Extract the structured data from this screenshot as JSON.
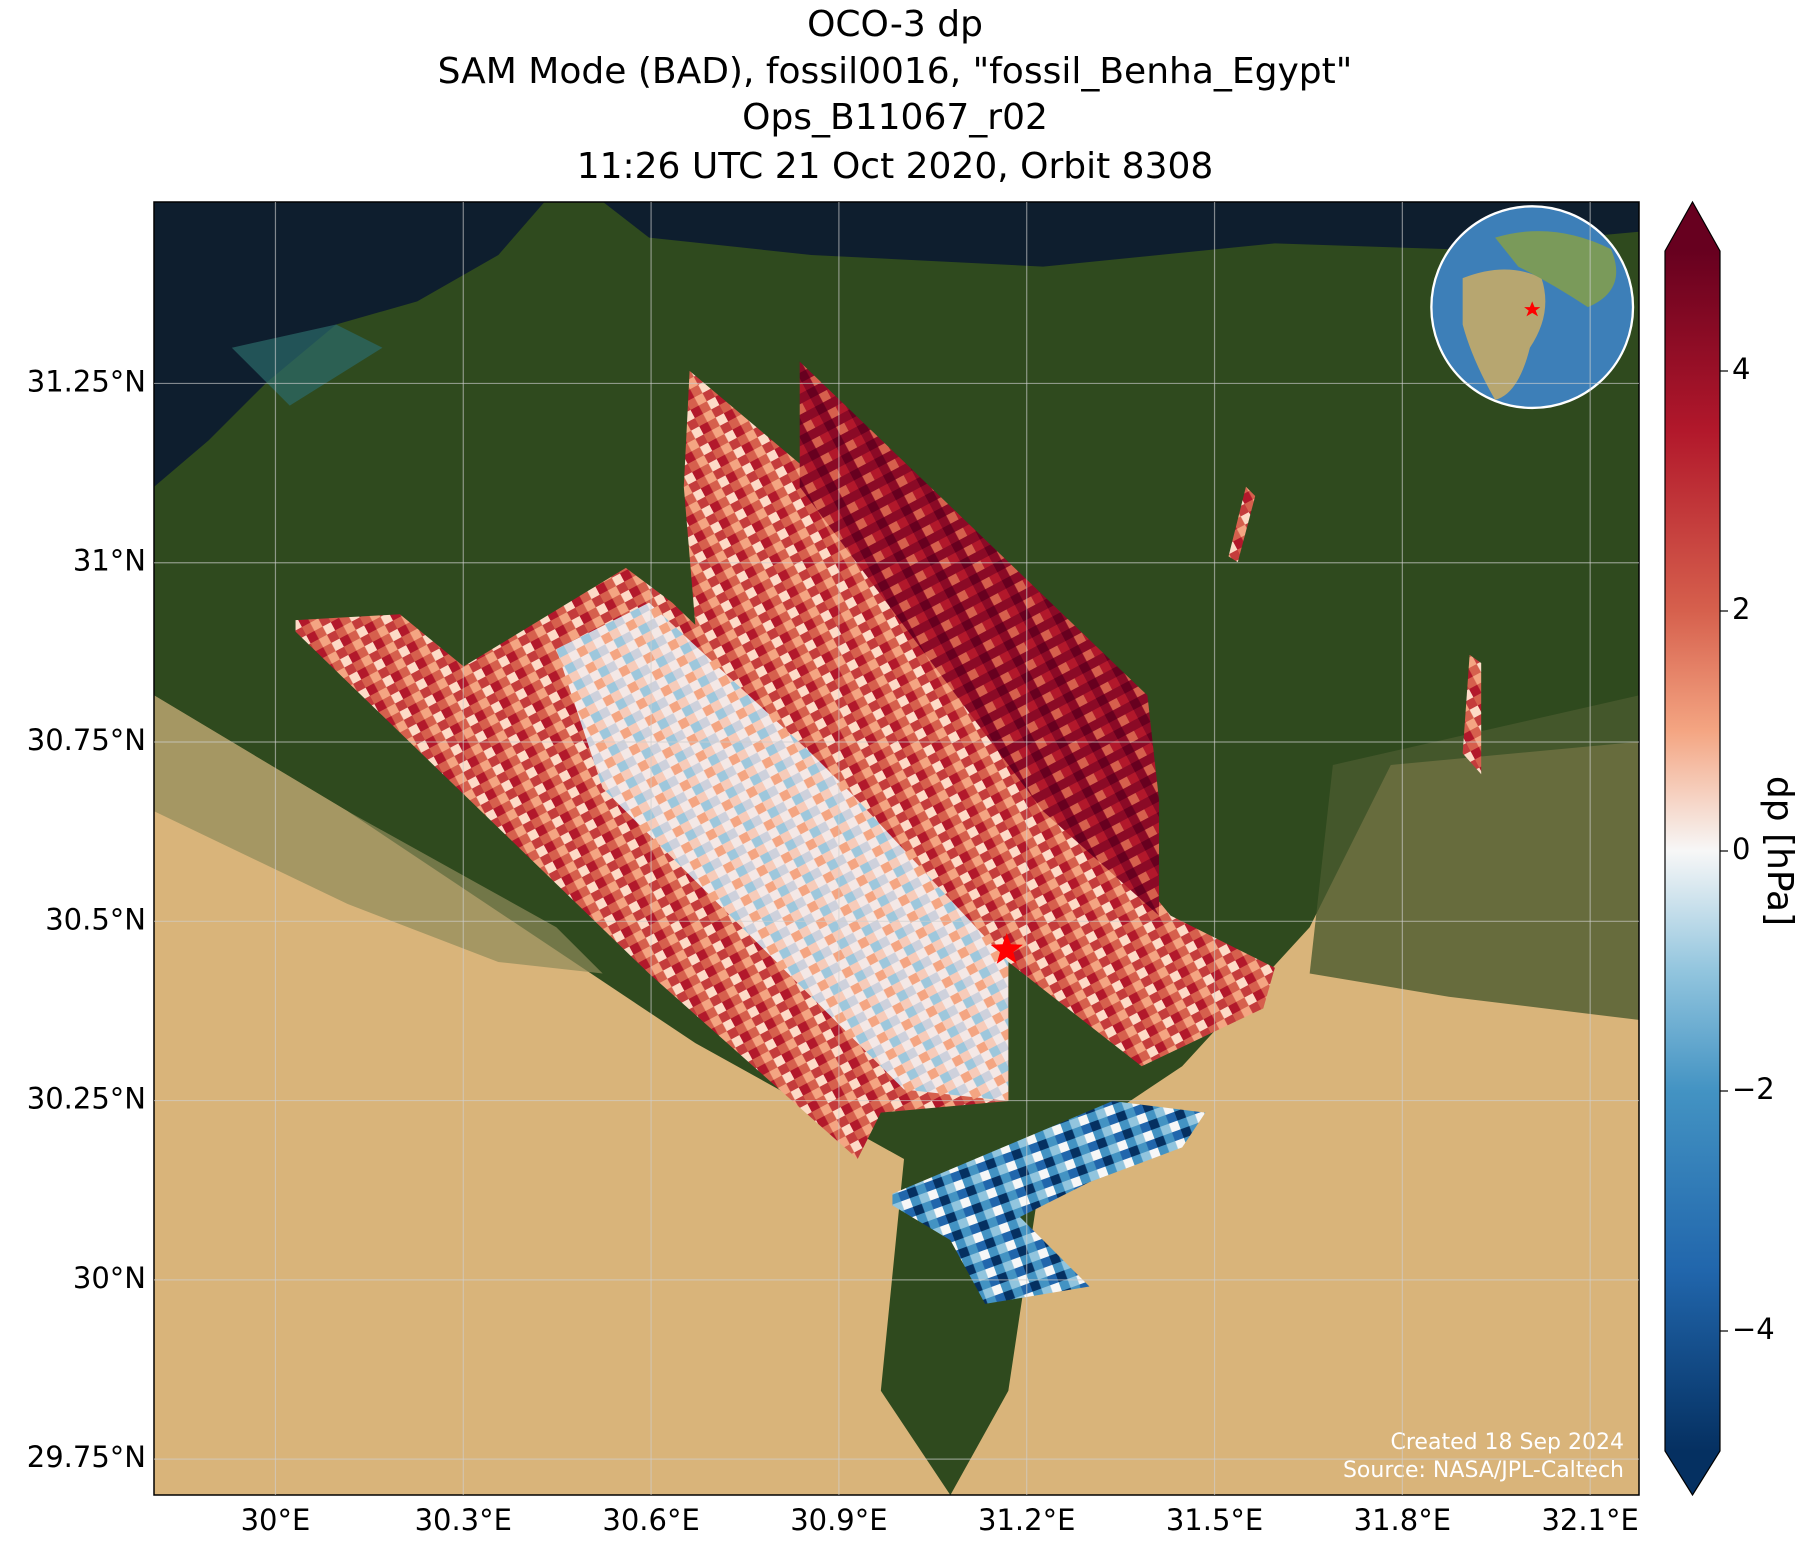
{
  "chart_data": {
    "type": "map",
    "title": [
      "OCO-3 dp",
      "SAM Mode (BAD), fossil0016, \"fossil_Benha_Egypt\"",
      "Ops_B11067_r02",
      "11:26 UTC 21 Oct 2020, Orbit 8308"
    ],
    "xlim": [
      29.806,
      32.178
    ],
    "ylim": [
      29.7,
      31.503
    ],
    "xticks": [
      {
        "value": 30,
        "label": "30°E"
      },
      {
        "value": 30.3,
        "label": "30.3°E"
      },
      {
        "value": 30.6,
        "label": "30.6°E"
      },
      {
        "value": 30.9,
        "label": "30.9°E"
      },
      {
        "value": 31.2,
        "label": "31.2°E"
      },
      {
        "value": 31.5,
        "label": "31.5°E"
      },
      {
        "value": 31.8,
        "label": "31.8°E"
      },
      {
        "value": 32.1,
        "label": "32.1°E"
      }
    ],
    "yticks": [
      {
        "value": 29.75,
        "label": "29.75°N"
      },
      {
        "value": 30,
        "label": "30°N"
      },
      {
        "value": 30.25,
        "label": "30.25°N"
      },
      {
        "value": 30.5,
        "label": "30.5°N"
      },
      {
        "value": 30.75,
        "label": "30.75°N"
      },
      {
        "value": 31,
        "label": "31°N"
      },
      {
        "value": 31.25,
        "label": "31.25°N"
      }
    ],
    "grid": true,
    "site": {
      "lon": 31.168,
      "lat": 30.46
    },
    "colorbar": {
      "label": "dp [hPa]",
      "lim": [
        -5,
        5
      ],
      "ticks": [
        {
          "value": -4,
          "label": "−4"
        },
        {
          "value": -2,
          "label": "−2"
        },
        0,
        2,
        4
      ],
      "extend": "both"
    },
    "annotations": [
      "Created 18 Sep 2024",
      "Source: NASA/JPL-Caltech"
    ]
  }
}
